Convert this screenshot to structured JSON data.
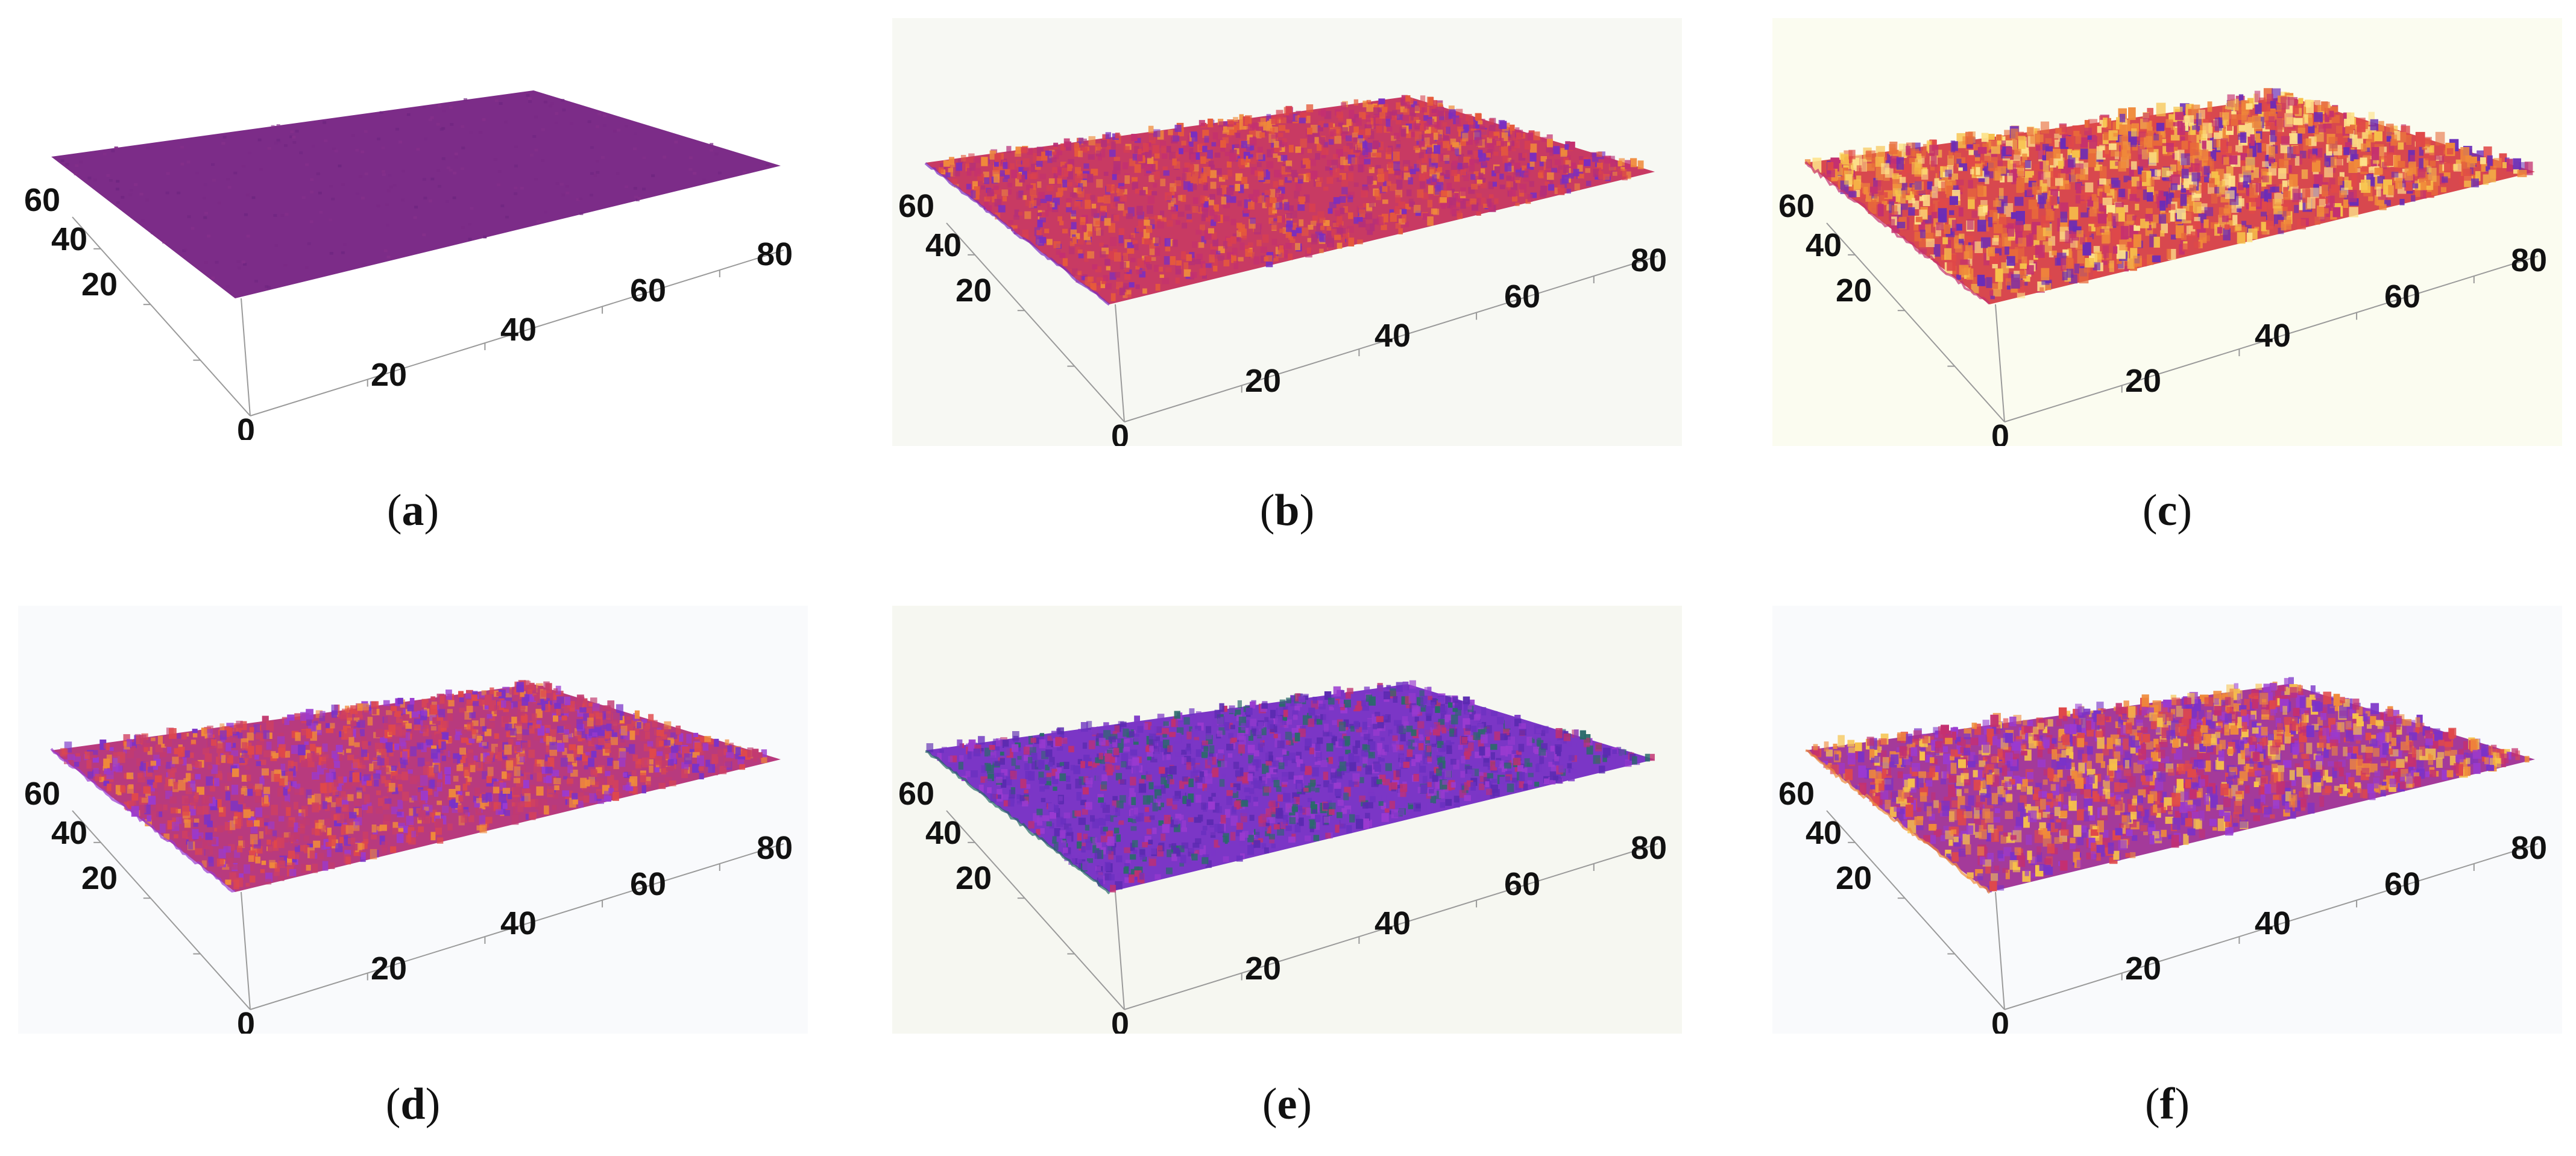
{
  "panels": [
    {
      "id": "a",
      "bg": "#ffffff",
      "base": "#7c2c88",
      "roughness": 0.0,
      "palette": [
        "#7a2a86",
        "#842f8a",
        "#702681"
      ]
    },
    {
      "id": "b",
      "bg": "#f7f8f3",
      "base": "#c83a63",
      "roughness": 0.55,
      "palette": [
        "#d8404f",
        "#e65a3a",
        "#b52f78",
        "#7a2ec0",
        "#f08a3a",
        "#c43070"
      ]
    },
    {
      "id": "c",
      "bg": "#fbfcf0",
      "base": "#d8484e",
      "roughness": 1.0,
      "palette": [
        "#e04848",
        "#f08a3a",
        "#f7c24a",
        "#c43070",
        "#6a2cb8",
        "#e86a3a",
        "#fde38a"
      ]
    },
    {
      "id": "d",
      "bg": "#f9fafc",
      "base": "#b83a7e",
      "roughness": 0.65,
      "palette": [
        "#c23a70",
        "#7a32c8",
        "#e0484a",
        "#9a3ad0",
        "#f08a3a",
        "#d04060"
      ]
    },
    {
      "id": "e",
      "bg": "#f6f7f1",
      "base": "#7b36c6",
      "roughness": 0.6,
      "palette": [
        "#7b36c6",
        "#9a3ad0",
        "#5a2ab0",
        "#2a6a6a",
        "#c03070",
        "#6a30c0"
      ]
    },
    {
      "id": "f",
      "bg": "#f9fafc",
      "base": "#a43a9a",
      "roughness": 0.85,
      "palette": [
        "#9a3ad0",
        "#c43070",
        "#e0484a",
        "#f08a3a",
        "#f7c24a",
        "#7a32c8"
      ]
    }
  ],
  "axes": {
    "y_ticks": [
      "60",
      "40",
      "20"
    ],
    "x_ticks": [
      "20",
      "40",
      "60",
      "80"
    ],
    "origin": "0"
  },
  "captions": [
    "a",
    "b",
    "c",
    "d",
    "e",
    "f"
  ]
}
